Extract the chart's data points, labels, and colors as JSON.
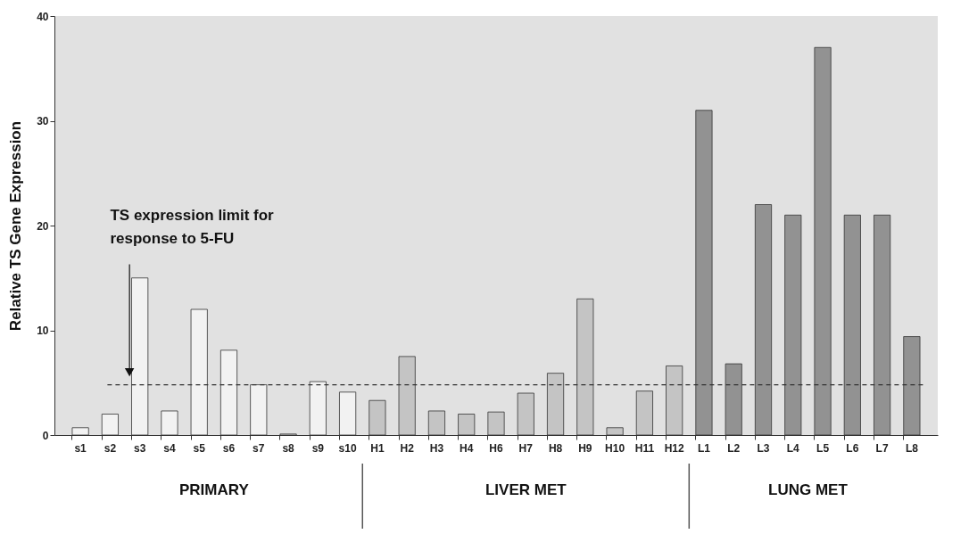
{
  "chart_data": {
    "type": "bar",
    "ylabel": "Relative TS Gene Expression",
    "categories": [
      "s1",
      "s2",
      "s3",
      "s4",
      "s5",
      "s6",
      "s7",
      "s8",
      "s9",
      "s10",
      "H1",
      "H2",
      "H3",
      "H4",
      "H6",
      "H7",
      "H8",
      "H9",
      "H10",
      "H11",
      "H12",
      "L1",
      "L2",
      "L3",
      "L4",
      "L5",
      "L6",
      "L7",
      "L8"
    ],
    "values": [
      0.7,
      2.0,
      15.0,
      2.3,
      12.0,
      8.1,
      4.8,
      0.1,
      5.1,
      4.1,
      3.3,
      7.5,
      2.3,
      2.0,
      2.2,
      4.0,
      5.9,
      13.0,
      0.7,
      4.2,
      6.6,
      31,
      6.8,
      22,
      21,
      37,
      21,
      21,
      9.4
    ],
    "colors": [
      "#f2f2f2",
      "#f2f2f2",
      "#f2f2f2",
      "#f2f2f2",
      "#f2f2f2",
      "#f2f2f2",
      "#f2f2f2",
      "#f2f2f2",
      "#f2f2f2",
      "#f2f2f2",
      "#c4c4c4",
      "#c4c4c4",
      "#c4c4c4",
      "#c4c4c4",
      "#c4c4c4",
      "#c4c4c4",
      "#c4c4c4",
      "#c4c4c4",
      "#c4c4c4",
      "#c4c4c4",
      "#c4c4c4",
      "#929292",
      "#929292",
      "#929292",
      "#929292",
      "#929292",
      "#929292",
      "#929292",
      "#929292"
    ],
    "ylim": [
      0,
      40
    ],
    "yticks": [
      0,
      10,
      20,
      30,
      40
    ],
    "grid": false,
    "ref_lines": [
      {
        "axis": "y",
        "value": 4.8,
        "label": "TS expression limit for response to 5-FU",
        "line_style": "dashed",
        "color": "#333333"
      }
    ],
    "annotations": [
      "PRIMARY",
      "LIVER MET",
      "LUNG MET"
    ]
  }
}
